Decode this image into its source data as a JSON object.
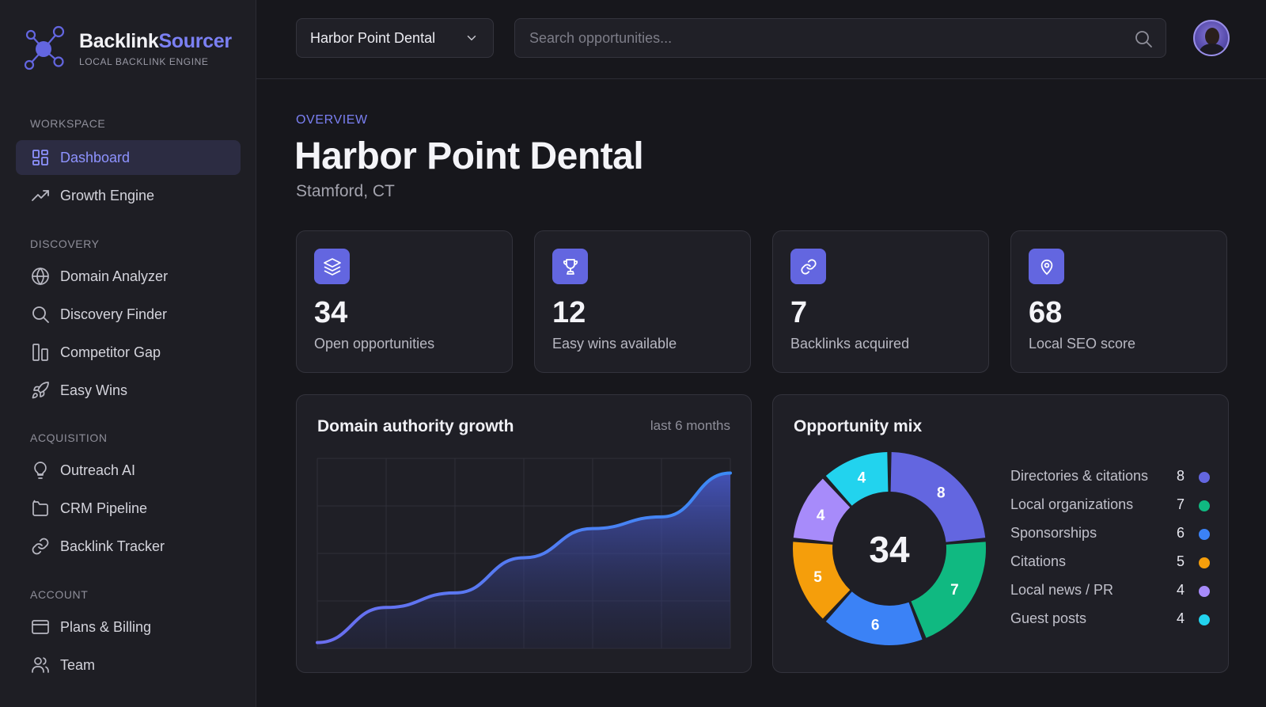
{
  "brand": {
    "name_part1": "Backlink",
    "name_part2": "Sourcer",
    "tagline": "LOCAL BACKLINK ENGINE"
  },
  "sidebar": {
    "sections": [
      {
        "heading": "WORKSPACE",
        "items": [
          {
            "label": "Dashboard",
            "icon": "dashboard-icon",
            "active": true
          },
          {
            "label": "Growth Engine",
            "icon": "trending-up-icon"
          }
        ]
      },
      {
        "heading": "DISCOVERY",
        "items": [
          {
            "label": "Domain Analyzer",
            "icon": "globe-icon"
          },
          {
            "label": "Discovery Finder",
            "icon": "search-icon"
          },
          {
            "label": "Competitor Gap",
            "icon": "columns-icon"
          },
          {
            "label": "Easy Wins",
            "icon": "rocket-icon"
          }
        ]
      },
      {
        "heading": "ACQUISITION",
        "items": [
          {
            "label": "Outreach AI",
            "icon": "lightbulb-icon"
          },
          {
            "label": "CRM Pipeline",
            "icon": "folder-icon"
          },
          {
            "label": "Backlink Tracker",
            "icon": "link-icon"
          }
        ]
      },
      {
        "heading": "ACCOUNT",
        "items": [
          {
            "label": "Plans & Billing",
            "icon": "credit-card-icon"
          },
          {
            "label": "Team",
            "icon": "users-icon"
          }
        ]
      }
    ]
  },
  "topbar": {
    "client": "Harbor Point Dental",
    "search_placeholder": "Search opportunities..."
  },
  "page": {
    "overline": "OVERVIEW",
    "title": "Harbor Point Dental",
    "subtitle": "Stamford, CT"
  },
  "stats": [
    {
      "value": "34",
      "label": "Open opportunities",
      "icon": "layers-icon"
    },
    {
      "value": "12",
      "label": "Easy wins available",
      "icon": "trophy-icon"
    },
    {
      "value": "7",
      "label": "Backlinks acquired",
      "icon": "link-icon"
    },
    {
      "value": "68",
      "label": "Local SEO score",
      "icon": "map-pin-icon"
    }
  ],
  "growth_panel": {
    "title": "Domain authority growth",
    "hint": "last 6 months"
  },
  "mix_panel": {
    "title": "Opportunity mix",
    "total": "34"
  },
  "colors": {
    "accent": "#7b80f3",
    "directories": "#6366e0",
    "local_orgs": "#10b981",
    "sponsorships": "#3b82f6",
    "citations": "#f59e0b",
    "local_news": "#a78bfa",
    "guest_posts": "#22d3ee"
  },
  "chart_data": [
    {
      "type": "area",
      "title": "Domain authority growth",
      "subtitle": "last 6 months",
      "x": [
        0,
        1,
        2,
        3,
        4,
        5,
        6
      ],
      "y": [
        4,
        28,
        38,
        62,
        82,
        90,
        120
      ],
      "ylim": [
        0,
        130
      ],
      "grid": true,
      "xlabel": "",
      "ylabel": ""
    },
    {
      "type": "pie",
      "title": "Opportunity mix",
      "center_label": "34",
      "legend": "right",
      "slices": [
        {
          "label": "Directories & citations",
          "value": 8,
          "color": "#6366e0"
        },
        {
          "label": "Local organizations",
          "value": 7,
          "color": "#10b981"
        },
        {
          "label": "Sponsorships",
          "value": 6,
          "color": "#3b82f6"
        },
        {
          "label": "Citations",
          "value": 5,
          "color": "#f59e0b"
        },
        {
          "label": "Local news / PR",
          "value": 4,
          "color": "#a78bfa"
        },
        {
          "label": "Guest posts",
          "value": 4,
          "color": "#22d3ee"
        }
      ]
    }
  ]
}
